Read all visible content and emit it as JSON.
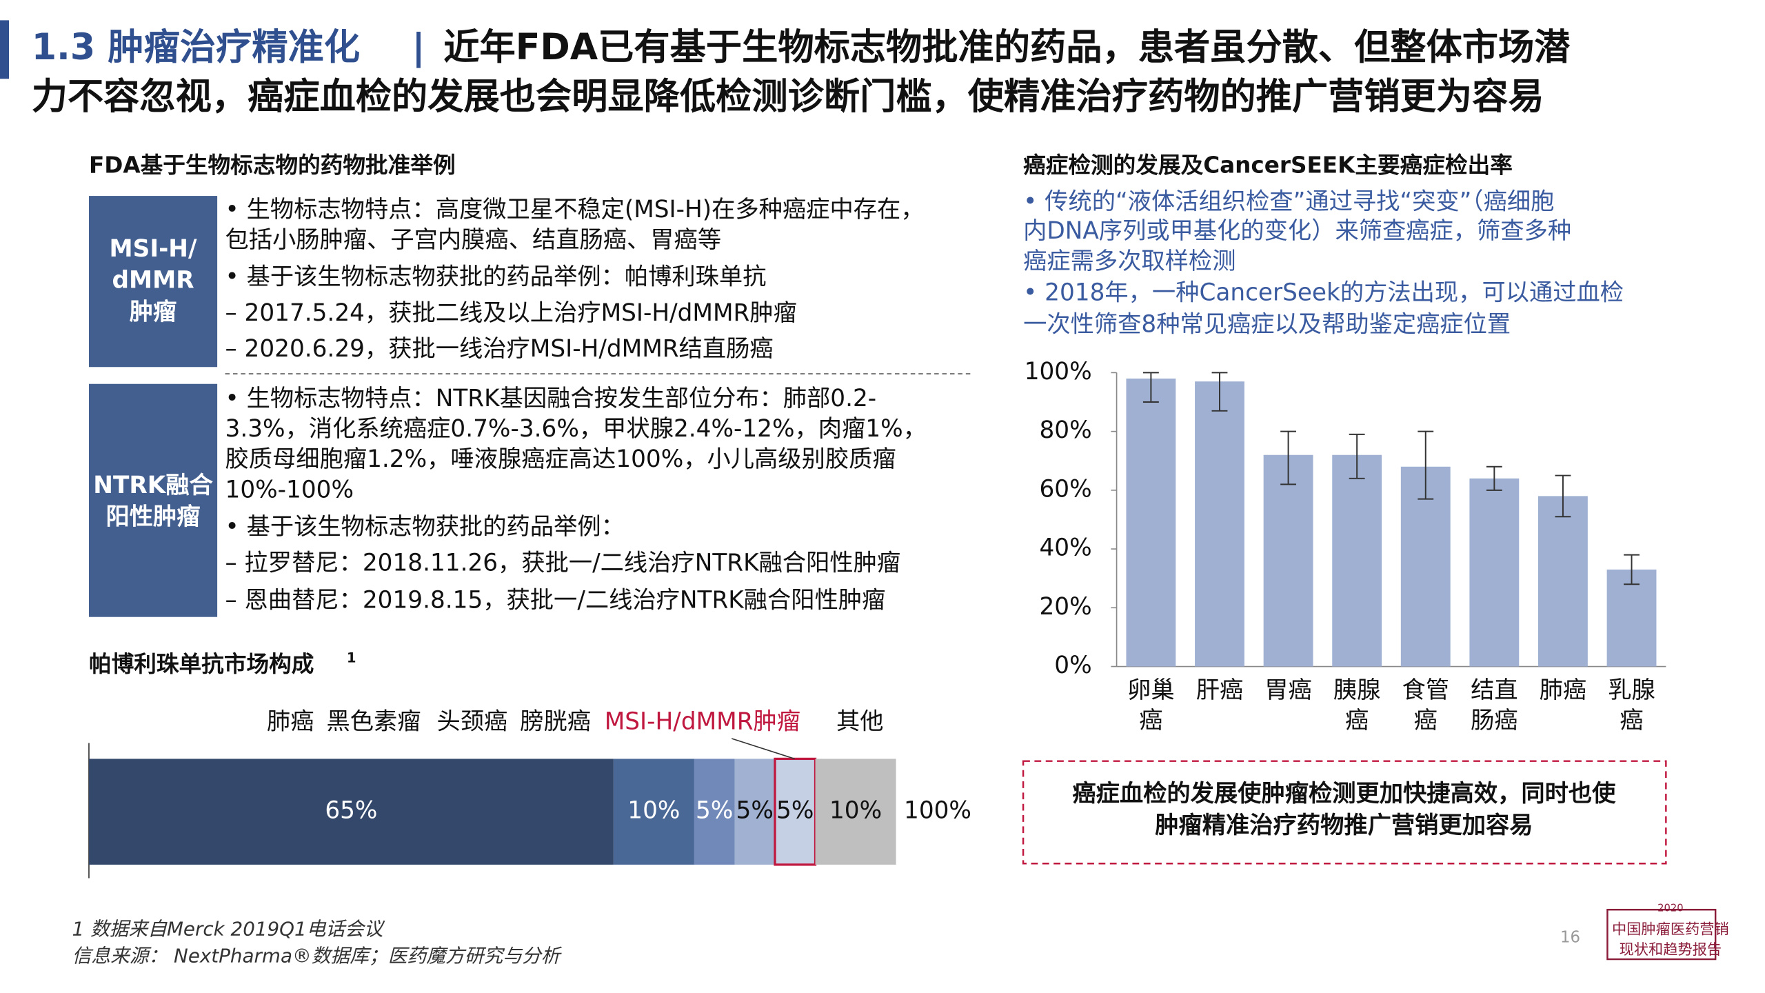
{
  "header": {
    "title_lines": [
      [
        {
          "text": "1.3 肿瘤治疗精准化",
          "color": "#2f4f8f"
        },
        {
          "text": "|",
          "color": "#2f4f8f"
        },
        {
          "text": "近年FDA已有基于生物标志物批准的药品，患者虽分散、但整体市场潜",
          "color": "#111111"
        }
      ],
      [
        {
          "text": "力不容忽视，癌症血检的发展也会明显降低检测诊断门槛，使精准治疗药物的推广营销更为容易",
          "color": "#111111"
        }
      ]
    ]
  },
  "left": {
    "heading": "FDA基于生物标志物的药物批准举例",
    "sections": [
      {
        "label_lines": [
          "MSI-H/",
          "dMMR",
          "肿瘤"
        ],
        "lines": [
          "• 生物标志物特点：高度微卫星不稳定(MSI-H)在多种癌症中存在，",
          "  包括小肠肿瘤、子宫内膜癌、结直肠癌、胃癌等",
          "• 基于该生物标志物获批的药品举例：帕博利珠单抗",
          "  – 2017.5.24，获批二线及以上治疗MSI-H/dMMR肿瘤",
          "  – 2020.6.29，获批一线治疗MSI-H/dMMR结直肠癌"
        ]
      },
      {
        "label_lines": [
          "NTRK融合",
          "阳性肿瘤"
        ],
        "lines": [
          "• 生物标志物特点：NTRK基因融合按发生部位分布：肺部0.2-",
          "  3.3%，消化系统癌症0.7%-3.6%，甲状腺2.4%-12%，肉瘤1%，",
          "  胶质母细胞瘤1.2%，唾液腺癌症高达100%，小儿高级别胶质瘤",
          "  10%-100%",
          "• 基于该生物标志物获批的药品举例：",
          "  – 拉罗替尼：2018.11.26，获批一/二线治疗NTRK融合阳性肿瘤",
          "  – 恩曲替尼：2019.8.15，获批一/二线治疗NTRK融合阳性肿瘤"
        ]
      }
    ],
    "footnotes": [
      "1 数据来自Merck 2019Q1电话会议",
      "信息来源： NextPharma®数据库；医药魔方研究与分析"
    ]
  },
  "right": {
    "heading": "癌症检测的发展及CancerSEEK主要癌症检出率",
    "lines": [
      "• 传统的“液体活组织检查”通过寻找“突变”（癌细胞",
      "  内DNA序列或甲基化的变化）来筛查癌症，筛查多种",
      "  癌症需多次取样检测",
      "• 2018年，一种CancerSeek的方法出现，可以通过血检",
      "  一次性筛查8种常见癌症以及帮助鉴定癌症位置"
    ],
    "conclusion": [
      "癌症血检的发展使肿瘤检测更加快捷高效，同时也使",
      "肿瘤精准治疗药物推广营销更加容易"
    ]
  },
  "page_number": "16",
  "logo": [
    "2020",
    "中国肿瘤医药营销",
    "现状和趋势报告"
  ],
  "chart_data": [
    {
      "type": "stacked_bar_h",
      "title": "帕博利珠单抗市场构成",
      "title_sup": "1",
      "total_label": "100%",
      "xlim": [
        0,
        100
      ],
      "series": [
        {
          "name": "肺癌",
          "color": "#34486b",
          "values": [
            65
          ],
          "value_labels": [
            "65%"
          ]
        },
        {
          "name": "黑色素瘤",
          "color": "#4a6896",
          "values": [
            10
          ],
          "value_labels": [
            "10%"
          ]
        },
        {
          "name": "头颈癌",
          "color": "#7189b8",
          "values": [
            5
          ],
          "value_labels": [
            "5%"
          ]
        },
        {
          "name": "膀胱癌",
          "color": "#a0b1d1",
          "values": [
            5
          ],
          "value_labels": [
            "5%"
          ]
        },
        {
          "name": "MSI-H/dMMR肿瘤",
          "color": "#c5d0e4",
          "values": [
            5
          ],
          "value_labels": [
            "5%"
          ],
          "highlight": "#c0173f"
        },
        {
          "name": "其他",
          "color": "#bfbfbf",
          "values": [
            10
          ],
          "value_labels": [
            "10%"
          ]
        }
      ]
    },
    {
      "type": "bar",
      "color": "#9fb0d2",
      "categories": [
        [
          "卵巢",
          "癌"
        ],
        [
          "肝癌"
        ],
        [
          "胃癌"
        ],
        [
          "胰腺",
          "癌"
        ],
        [
          "食管",
          "癌"
        ],
        [
          "结直",
          "肠癌"
        ],
        [
          "肺癌"
        ],
        [
          "乳腺",
          "癌"
        ]
      ],
      "values": [
        98,
        97,
        72,
        72,
        68,
        64,
        58,
        33
      ],
      "lower": [
        90,
        87,
        62,
        64,
        57,
        60,
        51,
        28
      ],
      "upper": [
        100,
        100,
        80,
        79,
        80,
        68,
        65,
        38
      ],
      "ylim": [
        0,
        100
      ],
      "yticks": [
        {
          "value": 0,
          "label": "0%"
        },
        {
          "value": 20,
          "label": "20%"
        },
        {
          "value": 40,
          "label": "40%"
        },
        {
          "value": 60,
          "label": "60%"
        },
        {
          "value": 80,
          "label": "80%"
        },
        {
          "value": 100,
          "label": "100%"
        }
      ]
    }
  ]
}
